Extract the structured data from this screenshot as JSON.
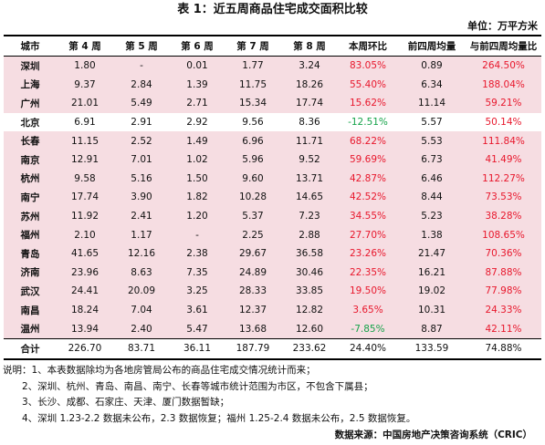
{
  "title": "表 1：近五周商品住宅成交面积比较",
  "unit": "单位：万平方米",
  "headers": [
    "城市",
    "第 4 周",
    "第 5 周",
    "第 6 周",
    "第 7 周",
    "第 8 周",
    "本周环比",
    "前四周均量",
    "与前四周均量比"
  ],
  "rows": [
    {
      "cells": [
        "深圳",
        "1.80",
        "-",
        "0.01",
        "1.77",
        "3.24",
        "83.05%",
        "0.89",
        "264.50%"
      ],
      "hl": true,
      "wow_color": "red",
      "avg_color": "red"
    },
    {
      "cells": [
        "上海",
        "9.37",
        "2.84",
        "1.39",
        "11.75",
        "18.26",
        "55.40%",
        "6.34",
        "188.04%"
      ],
      "hl": true,
      "wow_color": "red",
      "avg_color": "red"
    },
    {
      "cells": [
        "广州",
        "21.01",
        "5.49",
        "2.71",
        "15.34",
        "17.74",
        "15.62%",
        "11.14",
        "59.21%"
      ],
      "hl": true,
      "wow_color": "red",
      "avg_color": "red"
    },
    {
      "cells": [
        "北京",
        "6.91",
        "2.91",
        "2.92",
        "9.56",
        "8.36",
        "-12.51%",
        "5.57",
        "50.14%"
      ],
      "hl": false,
      "wow_color": "green",
      "avg_color": "red"
    },
    {
      "cells": [
        "长春",
        "11.15",
        "2.52",
        "1.49",
        "6.96",
        "11.71",
        "68.22%",
        "5.53",
        "111.84%"
      ],
      "hl": true,
      "wow_color": "red",
      "avg_color": "red"
    },
    {
      "cells": [
        "南京",
        "12.91",
        "7.01",
        "1.02",
        "5.96",
        "9.52",
        "59.69%",
        "6.73",
        "41.49%"
      ],
      "hl": true,
      "wow_color": "red",
      "avg_color": "red"
    },
    {
      "cells": [
        "杭州",
        "9.58",
        "5.16",
        "1.50",
        "9.60",
        "13.71",
        "42.87%",
        "6.46",
        "112.27%"
      ],
      "hl": true,
      "wow_color": "red",
      "avg_color": "red"
    },
    {
      "cells": [
        "南宁",
        "17.74",
        "3.90",
        "1.82",
        "10.28",
        "14.65",
        "42.52%",
        "8.44",
        "73.53%"
      ],
      "hl": true,
      "wow_color": "red",
      "avg_color": "red"
    },
    {
      "cells": [
        "苏州",
        "11.92",
        "2.41",
        "1.20",
        "5.37",
        "7.23",
        "34.55%",
        "5.23",
        "38.28%"
      ],
      "hl": true,
      "wow_color": "red",
      "avg_color": "red"
    },
    {
      "cells": [
        "福州",
        "2.10",
        "1.17",
        "-",
        "2.25",
        "2.88",
        "27.70%",
        "1.38",
        "108.65%"
      ],
      "hl": true,
      "wow_color": "red",
      "avg_color": "red"
    },
    {
      "cells": [
        "青岛",
        "41.65",
        "12.16",
        "2.38",
        "29.67",
        "36.58",
        "23.26%",
        "21.47",
        "70.36%"
      ],
      "hl": true,
      "wow_color": "red",
      "avg_color": "red"
    },
    {
      "cells": [
        "济南",
        "23.96",
        "8.63",
        "7.35",
        "24.89",
        "30.46",
        "22.35%",
        "16.21",
        "87.88%"
      ],
      "hl": true,
      "wow_color": "red",
      "avg_color": "red"
    },
    {
      "cells": [
        "武汉",
        "24.41",
        "20.09",
        "3.25",
        "28.33",
        "33.85",
        "19.50%",
        "19.02",
        "77.98%"
      ],
      "hl": true,
      "wow_color": "red",
      "avg_color": "red"
    },
    {
      "cells": [
        "南昌",
        "18.24",
        "7.04",
        "3.61",
        "12.37",
        "12.82",
        "3.65%",
        "10.31",
        "24.33%"
      ],
      "hl": true,
      "wow_color": "red",
      "avg_color": "red"
    },
    {
      "cells": [
        "温州",
        "13.94",
        "2.40",
        "5.47",
        "13.68",
        "12.60",
        "-7.85%",
        "8.87",
        "42.11%"
      ],
      "hl": true,
      "wow_color": "green",
      "avg_color": "red"
    }
  ],
  "total": [
    "合计",
    "226.70",
    "83.71",
    "36.11",
    "187.79",
    "233.62",
    "24.40%",
    "133.59",
    "74.88%"
  ],
  "notes": [
    "说明：1、本表数据除均为各地房管局公布的商品住宅成交情况统计而来；",
    "2、深圳、杭州、青岛、南昌、南宁、长春等城市统计范围为市区，不包含下属县；",
    "3、长沙、成都、石家庄、天津、厦门数据暂缺；",
    "4、深圳 1.23-2.2 数据未公布，2.3 数据恢复；福州 1.25-2.4 数据未公布，2.5 数据恢复。"
  ],
  "source": "数据来源：中国房地产决策咨询系统（CRIC）",
  "colors": {
    "highlight_bg": "#f6dde2",
    "positive": "#e8172c",
    "negative": "#16a34a"
  }
}
